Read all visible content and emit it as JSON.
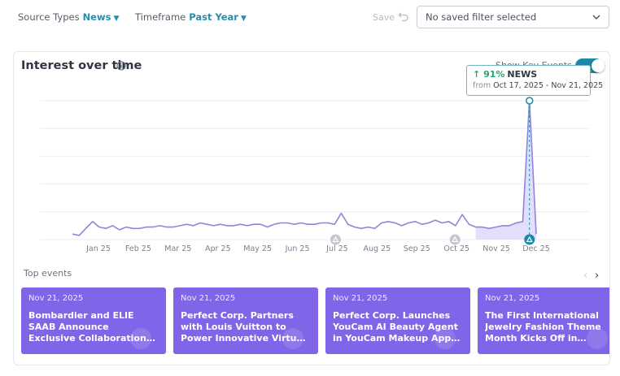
{
  "filters": {
    "source_types": {
      "label": "Source Types",
      "value": "News"
    },
    "timeframe": {
      "label": "Timeframe",
      "value": "Past Year"
    },
    "save_label": "Save",
    "saved_filter_placeholder": "No saved filter selected"
  },
  "card": {
    "title": "Interest over time",
    "show_key_events_label": "Show Key Events",
    "show_key_events_on": true
  },
  "tooltip": {
    "percent": "91%",
    "source": "NEWS",
    "from_label": "from",
    "range": "Oct 17, 2025 - Nov 21, 2025"
  },
  "chart_data": {
    "type": "area",
    "x_ticks": [
      "Jan 25",
      "Feb 25",
      "Mar 25",
      "Apr 25",
      "May 25",
      "Jun 25",
      "Jul 25",
      "Aug 25",
      "Sep 25",
      "Oct 25",
      "Nov 25",
      "Dec 25"
    ],
    "series": [
      {
        "values": [
          4,
          3,
          8,
          13,
          9,
          8,
          10,
          7,
          9,
          8,
          8,
          9,
          9,
          10,
          9,
          9,
          10,
          11,
          10,
          12,
          11,
          10,
          11,
          10,
          10,
          11,
          10,
          11,
          11,
          9,
          11,
          12,
          12,
          11,
          12,
          11,
          11,
          12,
          12,
          11,
          19,
          11,
          9,
          8,
          9,
          8,
          12,
          13,
          12,
          10,
          12,
          13,
          11,
          12,
          14,
          12,
          13,
          10,
          18,
          11,
          9,
          9,
          8,
          9,
          10,
          10,
          12,
          13,
          100,
          4
        ],
        "highlight_from_index": 60
      }
    ],
    "ylim": [
      0,
      100
    ],
    "grid": true,
    "key_event_marker_ticks": [
      "Jul 25",
      "Oct 25",
      "Nov 25"
    ],
    "colors": {
      "line": "#8f85db",
      "highlight_fill": "#e3defc",
      "marker": "#1e88a8"
    }
  },
  "top_events": {
    "label": "Top events",
    "items": [
      {
        "date": "Nov 21, 2025",
        "title": "Bombardier and ELIE SAAB Announce Exclusive Collaboration to Create..."
      },
      {
        "date": "Nov 21, 2025",
        "title": "Perfect Corp. Partners with Louis Vuitton to Power Innovative Virtual Try-On for..."
      },
      {
        "date": "Nov 21, 2025",
        "title": "Perfect Corp. Launches YouCam AI Beauty Agent in YouCam Makeup App to Lead..."
      },
      {
        "date": "Nov 21, 2025",
        "title": "The First International Jewelry Fashion Theme Month Kicks Off in Shanghai, Accelerating"
      }
    ]
  }
}
